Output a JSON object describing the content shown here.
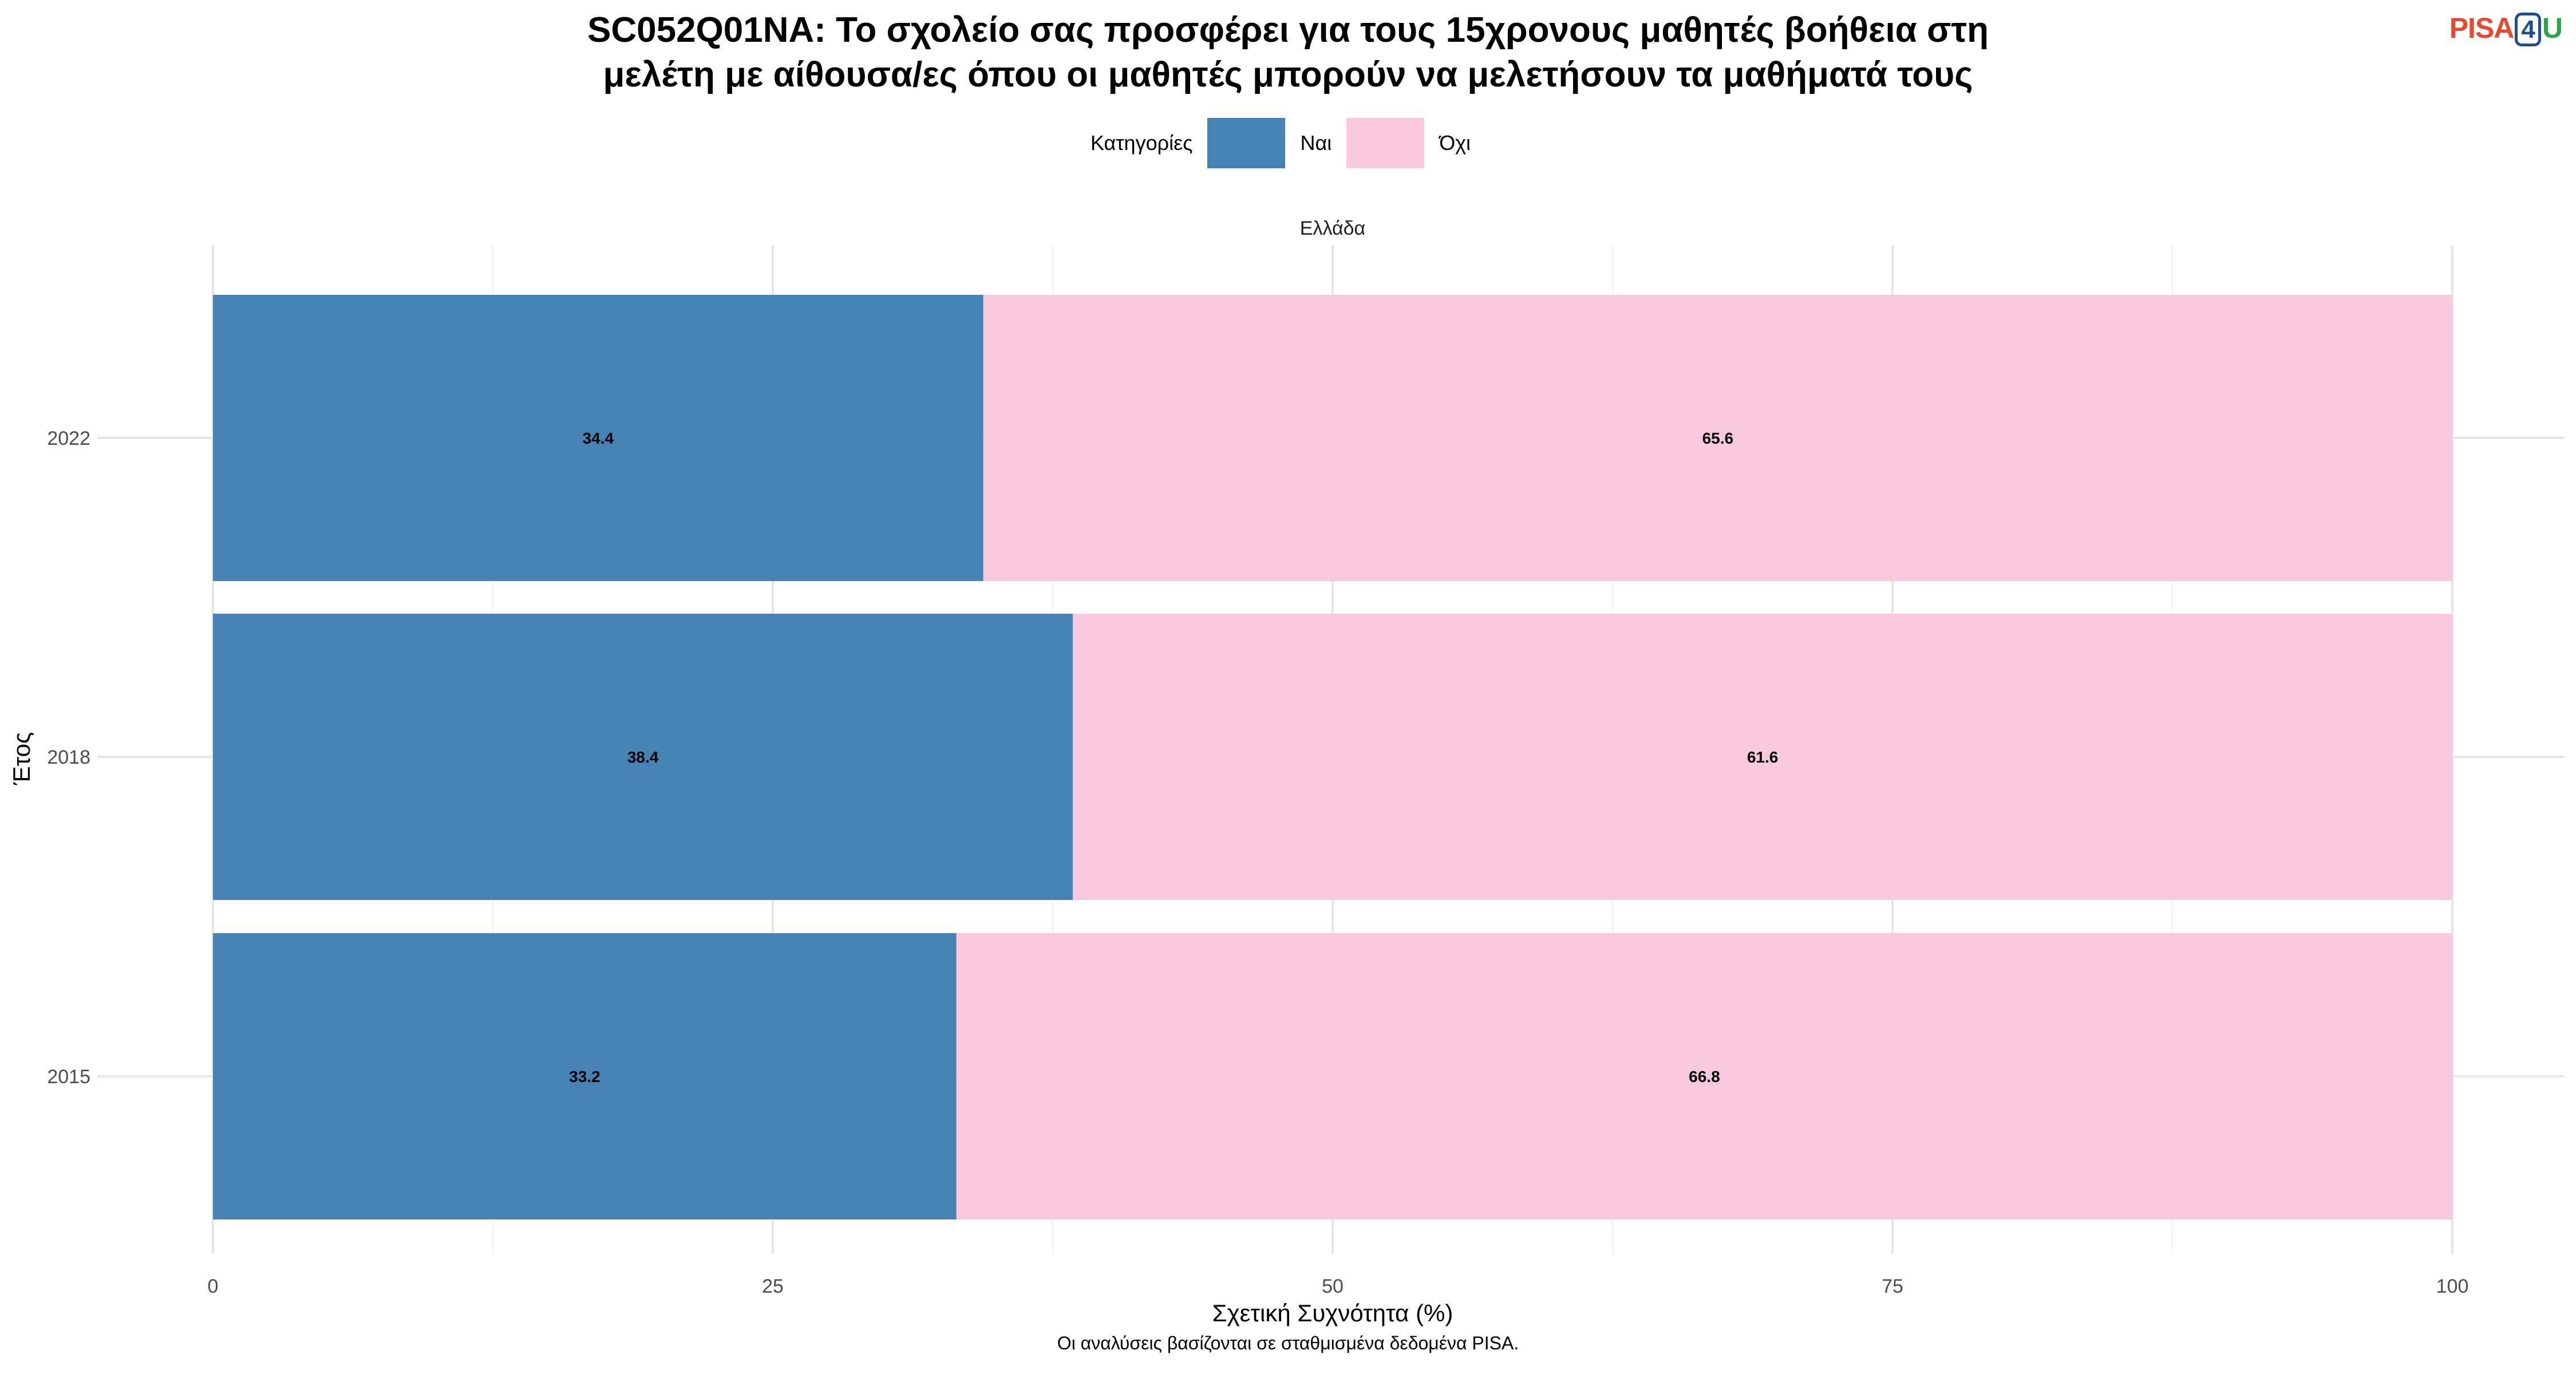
{
  "logo": {
    "part1": "PISA",
    "part2": "4",
    "part3": "U"
  },
  "footnote": "Οι αναλύσεις βασίζονται σε σταθμισμένα δεδομένα PISA.",
  "chart_data": {
    "type": "bar",
    "orientation": "horizontal",
    "stacked": true,
    "title_lines": [
      "SC052Q01NA: Το σχολείο σας προσφέρει για τους 15χρονους μαθητές βοήθεια στη",
      "μελέτη με αίθουσα/ες όπου οι μαθητές μπορούν να μελετήσουν τα μαθήματά τους"
    ],
    "facet_label": "Ελλάδα",
    "legend_title": "Κατηγορίες",
    "legend_position": "top",
    "xlabel": "Σχετική Συχνότητα (%)",
    "ylabel": "Έτος",
    "xlim": [
      0,
      100
    ],
    "xticks": [
      0,
      25,
      50,
      75,
      100
    ],
    "grid": true,
    "categories": [
      "2022",
      "2018",
      "2015"
    ],
    "series": [
      {
        "name": "Ναι",
        "color": "#4682b4",
        "values": [
          34.4,
          38.4,
          33.2
        ]
      },
      {
        "name": "Όχι",
        "color": "#f8c8dc",
        "values": [
          65.6,
          61.6,
          66.8
        ]
      }
    ]
  }
}
